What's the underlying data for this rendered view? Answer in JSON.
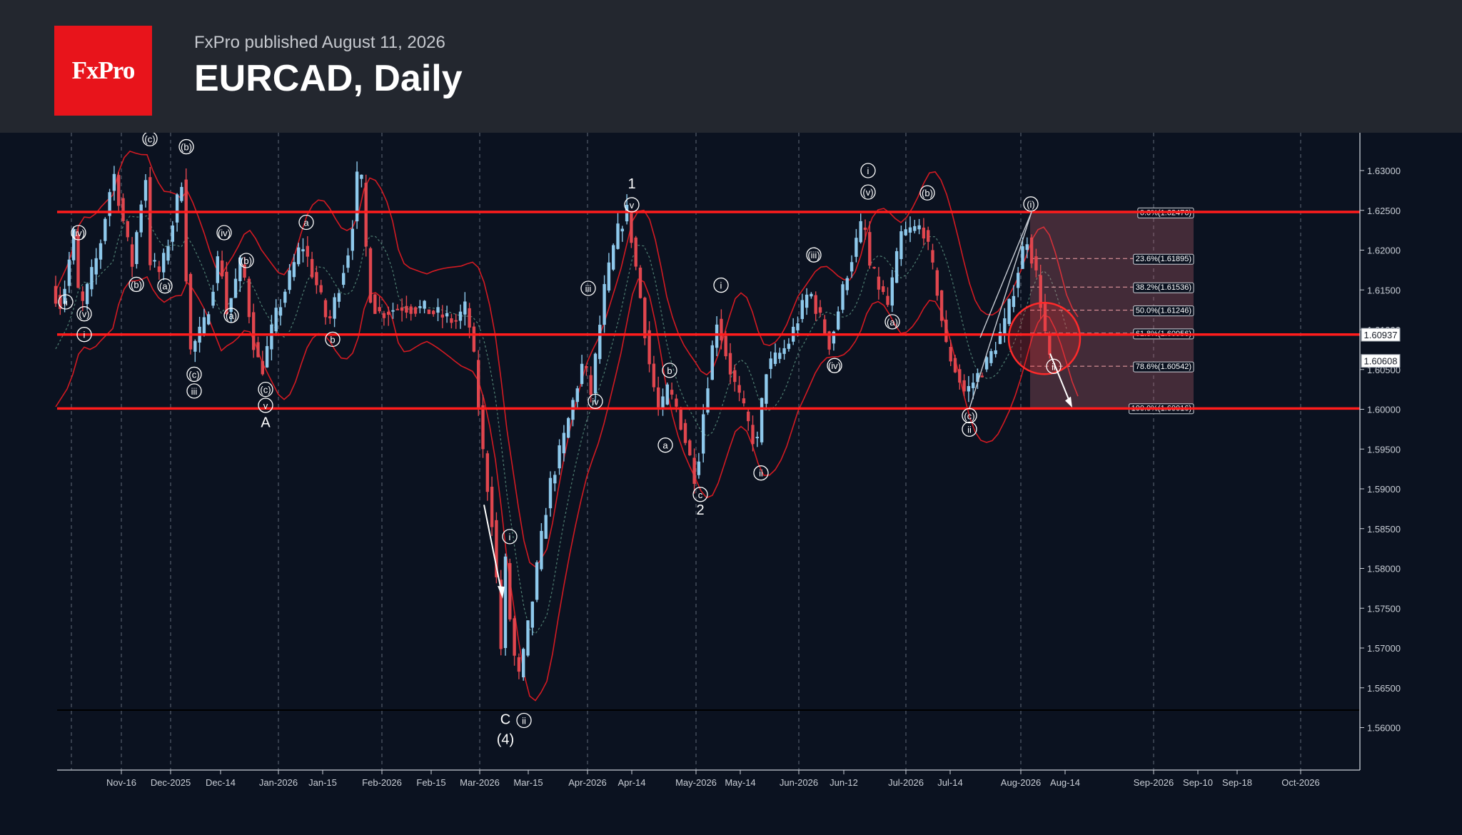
{
  "header": {
    "logo_text": "FxPro",
    "published": "FxPro published August 11, 2026",
    "title": "EURCAD, Daily"
  },
  "colors": {
    "background": "#0b1220",
    "header": "#23272f",
    "brand_red": "#e8141b",
    "bull_candle": "#8ec9ec",
    "bear_candle": "#e0464e",
    "bands": "#d21a22",
    "levels": "#ff1c1c"
  },
  "chart_data": {
    "type": "candlestick",
    "title": "EURCAD, Daily",
    "ylim": [
      1.555,
      1.635
    ],
    "grid": "vertical dashed",
    "y_ticks": [
      "1.63000",
      "1.62500",
      "1.62000",
      "1.61500",
      "1.61000",
      "1.60500",
      "1.60000",
      "1.59500",
      "1.59000",
      "1.58500",
      "1.58000",
      "1.57500",
      "1.57000",
      "1.56500",
      "1.56000"
    ],
    "x_ticks": [
      "Nov-16",
      "Dec-2025",
      "Dec-14",
      "Jan-2026",
      "Jan-15",
      "Feb-2026",
      "Feb-15",
      "Mar-2026",
      "Mar-15",
      "Apr-2026",
      "Apr-14",
      "May-2026",
      "May-14",
      "Jun-2026",
      "Jun-12",
      "Jul-2026",
      "Jul-14",
      "Aug-2026",
      "Aug-14",
      "Sep-2026",
      "Sep-10",
      "Sep-18",
      "Oct-2026"
    ],
    "price_labels": [
      "1.60937",
      "1.60608"
    ],
    "horizontal_levels": [
      1.6248,
      1.6094,
      1.6001,
      1.5622
    ],
    "fibonacci": [
      {
        "label": "0.0%(1.62476)",
        "price": 1.62476
      },
      {
        "label": "23.6%(1.61895)",
        "price": 1.61895
      },
      {
        "label": "38.2%(1.61536)",
        "price": 1.61536
      },
      {
        "label": "50.0%(1.61246)",
        "price": 1.61246
      },
      {
        "label": "61.8%(1.60956)",
        "price": 1.60956
      },
      {
        "label": "78.6%(1.60542)",
        "price": 1.60542
      },
      {
        "label": "100.0%(1.60016)",
        "price": 1.60016
      }
    ],
    "wave_labels": [
      {
        "text": "(iv)",
        "x": "Nov-16",
        "price": 1.6222,
        "offset": -60
      },
      {
        "text": "ii",
        "x": "Nov-16",
        "price": 1.6135,
        "offset": -78
      },
      {
        "text": "(v)",
        "x": "Nov-16",
        "price": 1.612,
        "offset": -52
      },
      {
        "text": "i",
        "x": "Nov-16",
        "price": 1.6094,
        "offset": -52
      },
      {
        "text": "(b)",
        "x": "Nov-16",
        "price": 1.6157,
        "offset": 21
      },
      {
        "text": "(c)",
        "x": "Nov-16",
        "price": 1.634,
        "offset": 40
      },
      {
        "text": "(b)",
        "x": "Dec-2025",
        "price": 1.633,
        "offset": 22
      },
      {
        "text": "(a)",
        "x": "Dec-2025",
        "price": 1.6155,
        "offset": -8
      },
      {
        "text": "(c)",
        "x": "Dec-2025",
        "price": 1.6044,
        "offset": 33
      },
      {
        "text": "iii",
        "x": "Dec-2025",
        "price": 1.6023,
        "offset": 33
      },
      {
        "text": "(iv)",
        "x": "Dec-14",
        "price": 1.6222,
        "offset": 5
      },
      {
        "text": "(a)",
        "x": "Dec-14",
        "price": 1.6118,
        "offset": 15
      },
      {
        "text": "(b)",
        "x": "Dec-14",
        "price": 1.6187,
        "offset": 36
      },
      {
        "text": "(c)",
        "x": "Jan-2026",
        "price": 1.6025,
        "offset": -18
      },
      {
        "text": "v",
        "x": "Jan-2026",
        "price": 1.6005,
        "offset": -18
      },
      {
        "text": "A",
        "x": "Jan-2026",
        "price": 1.5982,
        "offset": -18
      },
      {
        "text": "a",
        "x": "Jan-15",
        "price": 1.6235,
        "offset": -23
      },
      {
        "text": "b",
        "x": "Jan-15",
        "price": 1.6088,
        "offset": 14
      },
      {
        "text": "iii",
        "x": "Mar-2026",
        "price": 1.6152,
        "offset": 152
      },
      {
        "text": "i",
        "x": "Mar-2026",
        "price": 1.584,
        "offset": 42
      },
      {
        "text": "C",
        "x": "Mar-2026",
        "price": 1.5609,
        "offset": 36
      },
      {
        "text": "(4)",
        "x": "Mar-2026",
        "price": 1.5584,
        "offset": 36
      },
      {
        "text": "ii",
        "x": "Mar-15",
        "price": 1.5609,
        "offset": -6
      },
      {
        "text": "iv",
        "x": "Apr-2026",
        "price": 1.601,
        "offset": 11
      },
      {
        "text": "1",
        "x": "Apr-14",
        "price": 1.6282,
        "offset": 0
      },
      {
        "text": "v",
        "x": "Apr-14",
        "price": 1.6257,
        "offset": 0
      },
      {
        "text": "b",
        "x": "May-2026",
        "price": 1.6049,
        "offset": -37
      },
      {
        "text": "a",
        "x": "May-2026",
        "price": 1.5955,
        "offset": -43
      },
      {
        "text": "c",
        "x": "May-2026",
        "price": 1.5893,
        "offset": 6
      },
      {
        "text": "2",
        "x": "May-2026",
        "price": 1.5872,
        "offset": 6
      },
      {
        "text": "i",
        "x": "May-14",
        "price": 1.6156,
        "offset": -27
      },
      {
        "text": "ii",
        "x": "May-14",
        "price": 1.592,
        "offset": 29
      },
      {
        "text": "(iii)",
        "x": "Jun-12",
        "price": 1.6194,
        "offset": -42
      },
      {
        "text": "(iv)",
        "x": "Jun-12",
        "price": 1.6055,
        "offset": -13
      },
      {
        "text": "i",
        "x": "Jun-12",
        "price": 1.63,
        "offset": 34
      },
      {
        "text": "(v)",
        "x": "Jun-12",
        "price": 1.6273,
        "offset": 34
      },
      {
        "text": "(a)",
        "x": "Jul-2026",
        "price": 1.611,
        "offset": -19
      },
      {
        "text": "(b)",
        "x": "Jul-2026",
        "price": 1.6272,
        "offset": 30
      },
      {
        "text": "(c)",
        "x": "Jul-14",
        "price": 1.5992,
        "offset": 27
      },
      {
        "text": "ii",
        "x": "Jul-14",
        "price": 1.5975,
        "offset": 27
      },
      {
        "text": "(i)",
        "x": "Aug-2026",
        "price": 1.6258,
        "offset": 14
      },
      {
        "text": "ii",
        "x": "Aug-14",
        "price": 1.6054,
        "offset": -16
      }
    ]
  }
}
